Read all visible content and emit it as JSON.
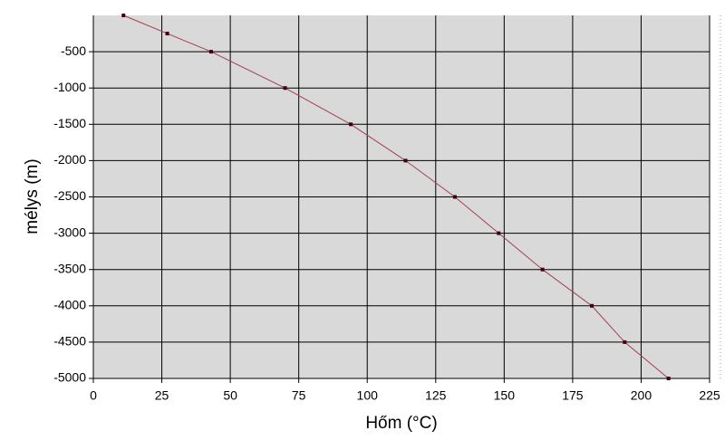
{
  "chart_data": {
    "type": "line",
    "x_label": "Hőm (°C)",
    "y_label": "mélys (m)",
    "x": [
      11,
      27,
      43,
      70,
      94,
      114,
      132,
      148,
      164,
      182,
      194,
      210
    ],
    "series": [
      {
        "color": "#a0404e",
        "values": [
          0,
          -250,
          -500,
          -1000,
          -1500,
          -2000,
          -2500,
          -3000,
          -3500,
          -4000,
          -4500,
          -5000
        ]
      }
    ],
    "xlim": [
      0,
      225
    ],
    "xticks": [
      0,
      25,
      50,
      75,
      100,
      125,
      150,
      175,
      200,
      225
    ],
    "ylim": [
      -5000,
      0
    ],
    "yticks": [
      -500,
      -1000,
      -1500,
      -2000,
      -2500,
      -3000,
      -3500,
      -4000,
      -4500,
      -5000
    ],
    "grid": true
  }
}
